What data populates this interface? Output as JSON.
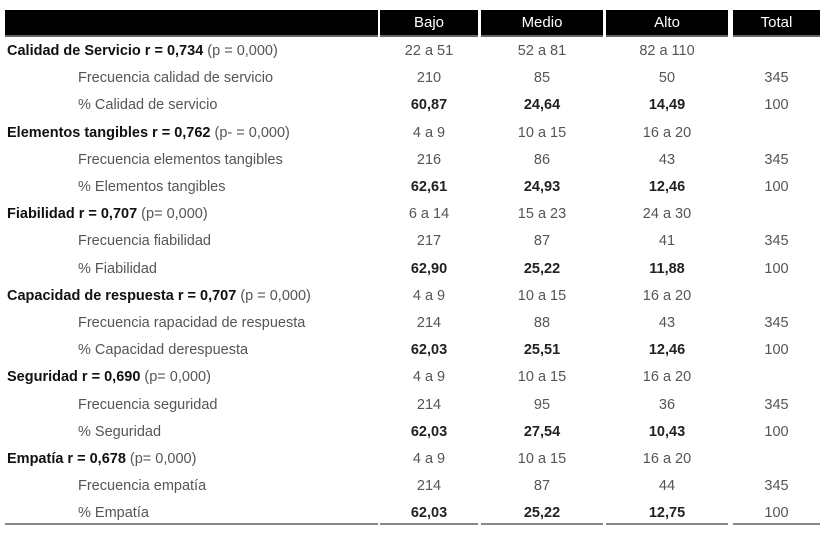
{
  "header": {
    "columns": [
      "",
      "Bajo",
      "Medio",
      "Alto",
      "Total"
    ]
  },
  "sections": [
    {
      "title_bold": "Calidad de Servicio  r = 0,734",
      "title_normal": " (p = 0,000)",
      "range": [
        "22 a 51",
        "52 a 81",
        "82 a 110",
        ""
      ],
      "freq_label": "Frecuencia calidad de servicio",
      "freq": [
        "210",
        "85",
        "50",
        "345"
      ],
      "pct_label": "% Calidad de servicio",
      "pct": [
        "60,87",
        "24,64",
        "14,49",
        "100"
      ]
    },
    {
      "title_bold": "Elementos tangibles r = 0,762",
      "title_normal": " (p- = 0,000)",
      "range": [
        "4 a 9",
        "10 a 15",
        "16 a 20",
        ""
      ],
      "freq_label": "Frecuencia elementos tangibles",
      "freq": [
        "216",
        "86",
        "43",
        "345"
      ],
      "pct_label": "% Elementos tangibles",
      "pct": [
        "62,61",
        "24,93",
        "12,46",
        "100"
      ]
    },
    {
      "title_bold": "Fiabilidad r = 0,707",
      "title_normal": " (p= 0,000)",
      "range": [
        "6 a 14",
        "15 a 23",
        "24 a 30",
        ""
      ],
      "freq_label": "Frecuencia fiabilidad",
      "freq": [
        "217",
        "87",
        "41",
        "345"
      ],
      "pct_label": "% Fiabilidad",
      "pct": [
        "62,90",
        "25,22",
        "11,88",
        "100"
      ]
    },
    {
      "title_bold": "Capacidad de respuesta r = 0,707",
      "title_normal": " (p = 0,000)",
      "range": [
        "4 a 9",
        "10 a 15",
        "16 a 20",
        ""
      ],
      "freq_label": "Frecuencia rapacidad de respuesta",
      "freq": [
        "214",
        "88",
        "43",
        "345"
      ],
      "pct_label": "% Capacidad derespuesta",
      "pct": [
        "62,03",
        "25,51",
        "12,46",
        "100"
      ]
    },
    {
      "title_bold": "Seguridad r = 0,690",
      "title_normal": " (p= 0,000)",
      "range": [
        "4 a 9",
        "10 a 15",
        "16 a 20",
        ""
      ],
      "freq_label": "Frecuencia seguridad",
      "freq": [
        "214",
        "95",
        "36",
        "345"
      ],
      "pct_label": "% Seguridad",
      "pct": [
        "62,03",
        "27,54",
        "10,43",
        "100"
      ]
    },
    {
      "title_bold": " Empatía  r = 0,678",
      "title_normal": " (p= 0,000)",
      "range": [
        "4 a 9",
        "10 a 15",
        "16 a 20",
        ""
      ],
      "freq_label": "Frecuencia empatía",
      "freq": [
        "214",
        "87",
        "44",
        "345"
      ],
      "pct_label": "% Empatía",
      "pct": [
        "62,03",
        "25,22",
        "12,75",
        "100"
      ]
    }
  ]
}
